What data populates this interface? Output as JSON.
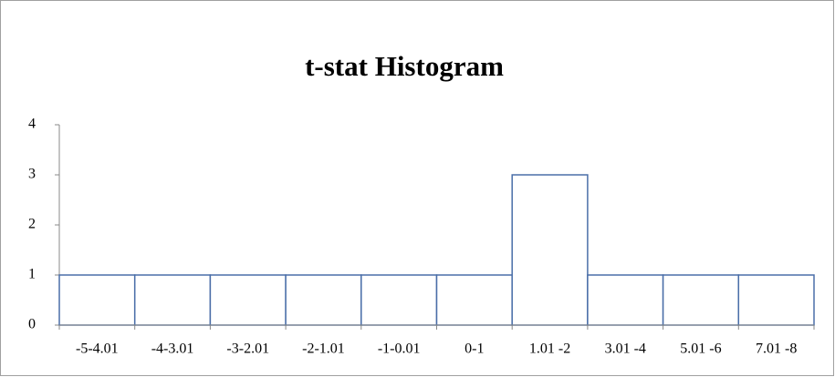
{
  "chart_data": {
    "type": "bar",
    "title": "t-stat Histogram",
    "categories": [
      "-5-4.01",
      "-4-3.01",
      "-3-2.01",
      "-2-1.01",
      "-1-0.01",
      "0-1",
      "1.01 -2",
      "3.01 -4",
      "5.01 -6",
      "7.01 -8"
    ],
    "values": [
      1,
      1,
      1,
      1,
      1,
      1,
      3,
      1,
      1,
      1
    ],
    "color": "#4a6ea8",
    "ylim": [
      0,
      4
    ],
    "yticks": [
      0,
      1,
      2,
      3,
      4
    ],
    "grid": false
  }
}
